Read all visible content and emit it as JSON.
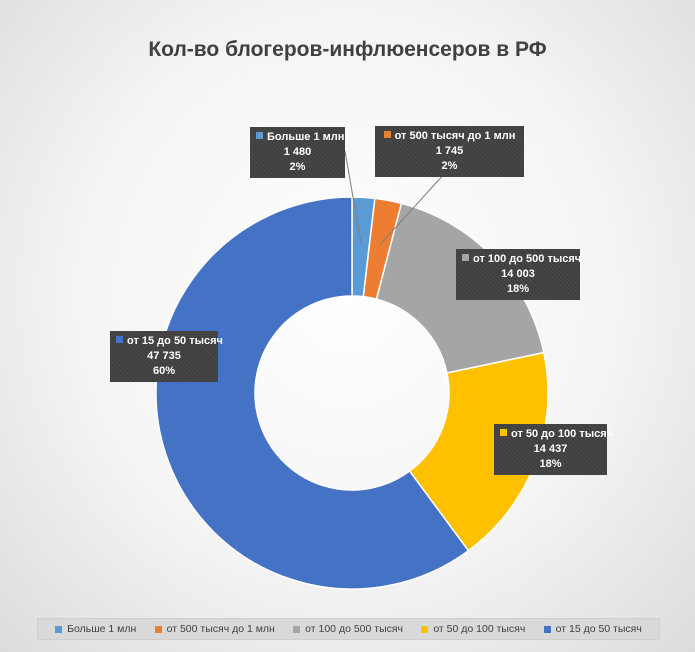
{
  "chart_data": {
    "type": "pie",
    "title": "Кол-во блогеров-инфлюенсеров в РФ",
    "series": [
      {
        "name": "Больше 1 млн",
        "value": 1480,
        "value_label": "1 480",
        "percent_label": "2%",
        "color": "#5b9bd5"
      },
      {
        "name": "от 500 тысяч до 1 млн",
        "value": 1745,
        "value_label": "1 745",
        "percent_label": "2%",
        "color": "#ed7d31"
      },
      {
        "name": "от 100 до 500 тысяч",
        "value": 14003,
        "value_label": "14 003",
        "percent_label": "18%",
        "color": "#a5a5a5"
      },
      {
        "name": "от 50 до 100 тысяч",
        "value": 14437,
        "value_label": "14 437",
        "percent_label": "18%",
        "color": "#ffc000"
      },
      {
        "name": "от 15 до 50 тысяч",
        "value": 47735,
        "value_label": "47 735",
        "percent_label": "60%",
        "color": "#4472c4"
      }
    ],
    "style": "doughnut",
    "legend": "bottom",
    "data_labels": "callout boxes with name, value, percent"
  }
}
